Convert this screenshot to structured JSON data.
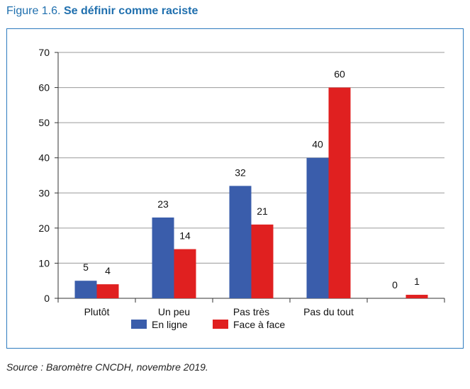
{
  "figure": {
    "number": "Figure 1.6.",
    "title": "Se définir comme raciste"
  },
  "source": "Source : Baromètre CNCDH, novembre 2019.",
  "colors": {
    "title": "#1f6fae",
    "frame": "#2e7bbf",
    "series_en_ligne": "#3a5dab",
    "series_face": "#e02020"
  },
  "chart_data": {
    "type": "bar",
    "title": "Se définir comme raciste",
    "categories": [
      "Plutôt",
      "Un peu",
      "Pas très",
      "Pas du tout",
      ""
    ],
    "series": [
      {
        "name": "En ligne",
        "values": [
          5,
          23,
          32,
          40,
          0
        ],
        "color": "#3a5dab"
      },
      {
        "name": "Face à face",
        "values": [
          4,
          14,
          21,
          60,
          1
        ],
        "color": "#e02020"
      }
    ],
    "ylim": [
      0,
      70
    ],
    "yticks": [
      0,
      10,
      20,
      30,
      40,
      50,
      60,
      70
    ],
    "grid": true,
    "legend": "bottom-center",
    "xlabel": "",
    "ylabel": ""
  }
}
